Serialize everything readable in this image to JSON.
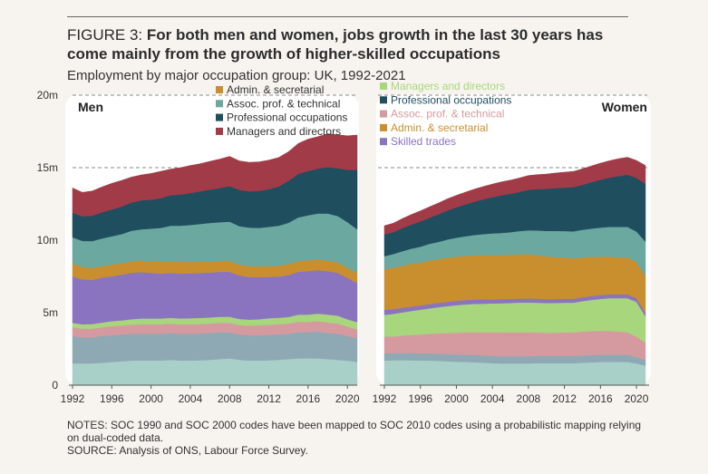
{
  "figure_label": "FIGURE 3:",
  "title": "For both men and women, jobs growth in the last 30 years has come mainly from the growth of higher-skilled occupations",
  "subtitle": "Employment by major occupation group: UK, 1992-2021",
  "notes": [
    "NOTES: SOC 1990 and SOC 2000 codes have been mapped to SOC 2010 codes using a probabilistic mapping relying on dual-coded data.",
    "SOURCE: Analysis of ONS, Labour Force Survey."
  ],
  "colors": {
    "bottom1": "#a8cfc8",
    "bottom2": "#8fa9b4",
    "bottom3": "#d49aa0",
    "bottom4": "#a8d67c",
    "skilled": "#8b74bf",
    "admin": "#c98f2e",
    "assoc": "#6aa8a0",
    "prof": "#1f4e5f",
    "managers": "#a23b48"
  },
  "chart_data": [
    {
      "type": "area",
      "title": "Men",
      "x": [
        1992,
        1993,
        1994,
        1995,
        1996,
        1997,
        1998,
        1999,
        2000,
        2001,
        2002,
        2003,
        2004,
        2005,
        2006,
        2007,
        2008,
        2009,
        2010,
        2011,
        2012,
        2013,
        2014,
        2015,
        2016,
        2017,
        2018,
        2019,
        2020,
        2021
      ],
      "y_ticks": [
        "0",
        "5m",
        "10m",
        "15m",
        "20m"
      ],
      "x_ticks": [
        "1992",
        "1996",
        "2000",
        "2004",
        "2008",
        "2012",
        "2016",
        "2020"
      ],
      "ylim": [
        0,
        20
      ],
      "legend": [
        "Admin. & secretarial",
        "Assoc. prof. & technical",
        "Professional occupations",
        "Managers and directors"
      ],
      "legend_keys": [
        "admin",
        "assoc",
        "prof",
        "managers"
      ],
      "series": [
        {
          "key": "bottom1",
          "values": [
            1.5,
            1.5,
            1.5,
            1.55,
            1.6,
            1.65,
            1.7,
            1.7,
            1.7,
            1.7,
            1.75,
            1.7,
            1.7,
            1.72,
            1.75,
            1.8,
            1.85,
            1.75,
            1.7,
            1.7,
            1.72,
            1.75,
            1.8,
            1.85,
            1.85,
            1.85,
            1.8,
            1.75,
            1.7,
            1.6
          ]
        },
        {
          "key": "bottom2",
          "values": [
            1.9,
            1.8,
            1.8,
            1.85,
            1.85,
            1.85,
            1.85,
            1.85,
            1.85,
            1.85,
            1.85,
            1.85,
            1.85,
            1.85,
            1.85,
            1.85,
            1.8,
            1.75,
            1.75,
            1.75,
            1.75,
            1.75,
            1.75,
            1.8,
            1.8,
            1.85,
            1.8,
            1.8,
            1.7,
            1.65
          ]
        },
        {
          "key": "bottom3",
          "values": [
            0.6,
            0.6,
            0.6,
            0.6,
            0.62,
            0.62,
            0.62,
            0.65,
            0.65,
            0.65,
            0.65,
            0.65,
            0.65,
            0.65,
            0.65,
            0.65,
            0.65,
            0.65,
            0.65,
            0.68,
            0.7,
            0.7,
            0.7,
            0.72,
            0.72,
            0.72,
            0.72,
            0.7,
            0.65,
            0.6
          ]
        },
        {
          "key": "bottom4",
          "values": [
            0.3,
            0.3,
            0.32,
            0.32,
            0.35,
            0.35,
            0.38,
            0.4,
            0.4,
            0.4,
            0.4,
            0.4,
            0.42,
            0.42,
            0.42,
            0.42,
            0.42,
            0.42,
            0.42,
            0.42,
            0.45,
            0.45,
            0.45,
            0.5,
            0.5,
            0.52,
            0.55,
            0.55,
            0.5,
            0.5
          ]
        },
        {
          "key": "skilled",
          "values": [
            3.2,
            3.1,
            3.05,
            3.1,
            3.1,
            3.15,
            3.2,
            3.2,
            3.15,
            3.1,
            3.1,
            3.1,
            3.1,
            3.1,
            3.1,
            3.1,
            3.1,
            3.0,
            2.95,
            2.9,
            2.85,
            2.85,
            2.9,
            2.95,
            3.0,
            3.0,
            3.0,
            2.95,
            2.85,
            2.7
          ]
        },
        {
          "key": "admin",
          "values": [
            0.9,
            0.85,
            0.82,
            0.8,
            0.8,
            0.8,
            0.8,
            0.8,
            0.8,
            0.8,
            0.8,
            0.8,
            0.78,
            0.78,
            0.77,
            0.77,
            0.76,
            0.75,
            0.75,
            0.75,
            0.75,
            0.75,
            0.75,
            0.75,
            0.75,
            0.75,
            0.72,
            0.72,
            0.7,
            0.7
          ]
        },
        {
          "key": "assoc",
          "values": [
            1.8,
            1.8,
            1.85,
            1.9,
            1.95,
            2.0,
            2.1,
            2.15,
            2.25,
            2.35,
            2.45,
            2.5,
            2.55,
            2.6,
            2.65,
            2.65,
            2.7,
            2.65,
            2.65,
            2.65,
            2.7,
            2.75,
            2.85,
            3.0,
            3.1,
            3.15,
            3.25,
            3.2,
            3.15,
            3.0
          ]
        },
        {
          "key": "prof",
          "values": [
            1.7,
            1.7,
            1.75,
            1.8,
            1.85,
            1.9,
            1.95,
            2.0,
            2.0,
            2.05,
            2.1,
            2.15,
            2.2,
            2.25,
            2.3,
            2.35,
            2.45,
            2.5,
            2.5,
            2.55,
            2.6,
            2.7,
            2.9,
            3.0,
            3.05,
            3.1,
            3.2,
            3.3,
            3.6,
            4.1
          ]
        },
        {
          "key": "managers",
          "values": [
            1.7,
            1.65,
            1.7,
            1.75,
            1.8,
            1.8,
            1.75,
            1.75,
            1.8,
            1.85,
            1.8,
            1.85,
            1.9,
            1.9,
            1.95,
            2.0,
            2.05,
            2.0,
            2.0,
            2.0,
            2.0,
            2.0,
            2.0,
            2.1,
            2.2,
            2.2,
            2.3,
            2.3,
            2.35,
            2.4
          ]
        }
      ]
    },
    {
      "type": "area",
      "title": "Women",
      "x": [
        1992,
        1993,
        1994,
        1995,
        1996,
        1997,
        1998,
        1999,
        2000,
        2001,
        2002,
        2003,
        2004,
        2005,
        2006,
        2007,
        2008,
        2009,
        2010,
        2011,
        2012,
        2013,
        2014,
        2015,
        2016,
        2017,
        2018,
        2019,
        2020,
        2021
      ],
      "x_ticks": [
        "1992",
        "1996",
        "2000",
        "2004",
        "2008",
        "2012",
        "2016",
        "2020"
      ],
      "ylim": [
        0,
        20
      ],
      "legend": [
        "Managers and directors",
        "Professional occupations",
        "Assoc. prof. & technical",
        "Admin. & secretarial",
        "Skilled trades"
      ],
      "legend_keys": [
        "bottom4",
        "prof",
        "bottom3",
        "admin",
        "skilled"
      ],
      "series": [
        {
          "key": "bottom1",
          "values": [
            1.7,
            1.72,
            1.72,
            1.72,
            1.7,
            1.7,
            1.68,
            1.65,
            1.62,
            1.6,
            1.58,
            1.55,
            1.52,
            1.5,
            1.5,
            1.5,
            1.5,
            1.52,
            1.52,
            1.52,
            1.52,
            1.52,
            1.55,
            1.58,
            1.6,
            1.6,
            1.6,
            1.6,
            1.5,
            1.35
          ]
        },
        {
          "key": "bottom2",
          "values": [
            0.5,
            0.5,
            0.5,
            0.5,
            0.5,
            0.5,
            0.5,
            0.5,
            0.5,
            0.5,
            0.5,
            0.5,
            0.5,
            0.5,
            0.5,
            0.5,
            0.5,
            0.5,
            0.5,
            0.5,
            0.5,
            0.5,
            0.5,
            0.5,
            0.5,
            0.5,
            0.5,
            0.5,
            0.45,
            0.4
          ]
        },
        {
          "key": "bottom3",
          "values": [
            1.15,
            1.15,
            1.2,
            1.25,
            1.3,
            1.35,
            1.4,
            1.45,
            1.5,
            1.55,
            1.58,
            1.6,
            1.62,
            1.65,
            1.65,
            1.65,
            1.65,
            1.62,
            1.6,
            1.6,
            1.62,
            1.62,
            1.65,
            1.65,
            1.65,
            1.65,
            1.6,
            1.55,
            1.4,
            1.2
          ]
        },
        {
          "key": "bottom4",
          "values": [
            1.5,
            1.55,
            1.6,
            1.65,
            1.7,
            1.75,
            1.8,
            1.85,
            1.9,
            1.92,
            1.95,
            1.97,
            2.0,
            2.0,
            2.02,
            2.05,
            2.05,
            2.05,
            2.05,
            2.05,
            2.05,
            2.05,
            2.1,
            2.15,
            2.2,
            2.25,
            2.3,
            2.35,
            2.4,
            1.8
          ]
        },
        {
          "key": "skilled",
          "values": [
            0.35,
            0.33,
            0.32,
            0.3,
            0.3,
            0.3,
            0.3,
            0.3,
            0.3,
            0.3,
            0.3,
            0.3,
            0.28,
            0.28,
            0.28,
            0.28,
            0.28,
            0.28,
            0.27,
            0.27,
            0.27,
            0.27,
            0.27,
            0.27,
            0.27,
            0.27,
            0.27,
            0.27,
            0.25,
            0.25
          ]
        },
        {
          "key": "admin",
          "values": [
            2.8,
            2.85,
            2.9,
            2.95,
            2.95,
            3.0,
            3.0,
            3.05,
            3.05,
            3.05,
            3.05,
            3.05,
            3.05,
            3.05,
            3.05,
            3.05,
            3.05,
            3.0,
            2.95,
            2.9,
            2.85,
            2.8,
            2.75,
            2.7,
            2.65,
            2.6,
            2.55,
            2.55,
            2.5,
            2.5
          ]
        },
        {
          "key": "assoc",
          "values": [
            0.9,
            0.95,
            1.0,
            1.05,
            1.1,
            1.15,
            1.2,
            1.25,
            1.3,
            1.35,
            1.4,
            1.45,
            1.5,
            1.52,
            1.55,
            1.6,
            1.65,
            1.7,
            1.75,
            1.8,
            1.82,
            1.85,
            1.9,
            1.95,
            2.0,
            2.05,
            2.1,
            2.1,
            2.1,
            2.4
          ]
        },
        {
          "key": "prof",
          "values": [
            1.5,
            1.5,
            1.6,
            1.65,
            1.75,
            1.8,
            1.9,
            2.0,
            2.1,
            2.2,
            2.3,
            2.4,
            2.5,
            2.6,
            2.65,
            2.7,
            2.8,
            2.85,
            2.9,
            2.95,
            3.0,
            3.05,
            3.1,
            3.2,
            3.3,
            3.4,
            3.5,
            3.6,
            3.7,
            4.0
          ]
        },
        {
          "key": "managers",
          "values": [
            0.6,
            0.62,
            0.65,
            0.7,
            0.72,
            0.75,
            0.78,
            0.8,
            0.82,
            0.84,
            0.86,
            0.88,
            0.9,
            0.92,
            0.94,
            0.96,
            0.98,
            1.0,
            1.02,
            1.04,
            1.06,
            1.08,
            1.1,
            1.12,
            1.14,
            1.16,
            1.2,
            1.2,
            1.2,
            1.25
          ]
        }
      ]
    }
  ]
}
